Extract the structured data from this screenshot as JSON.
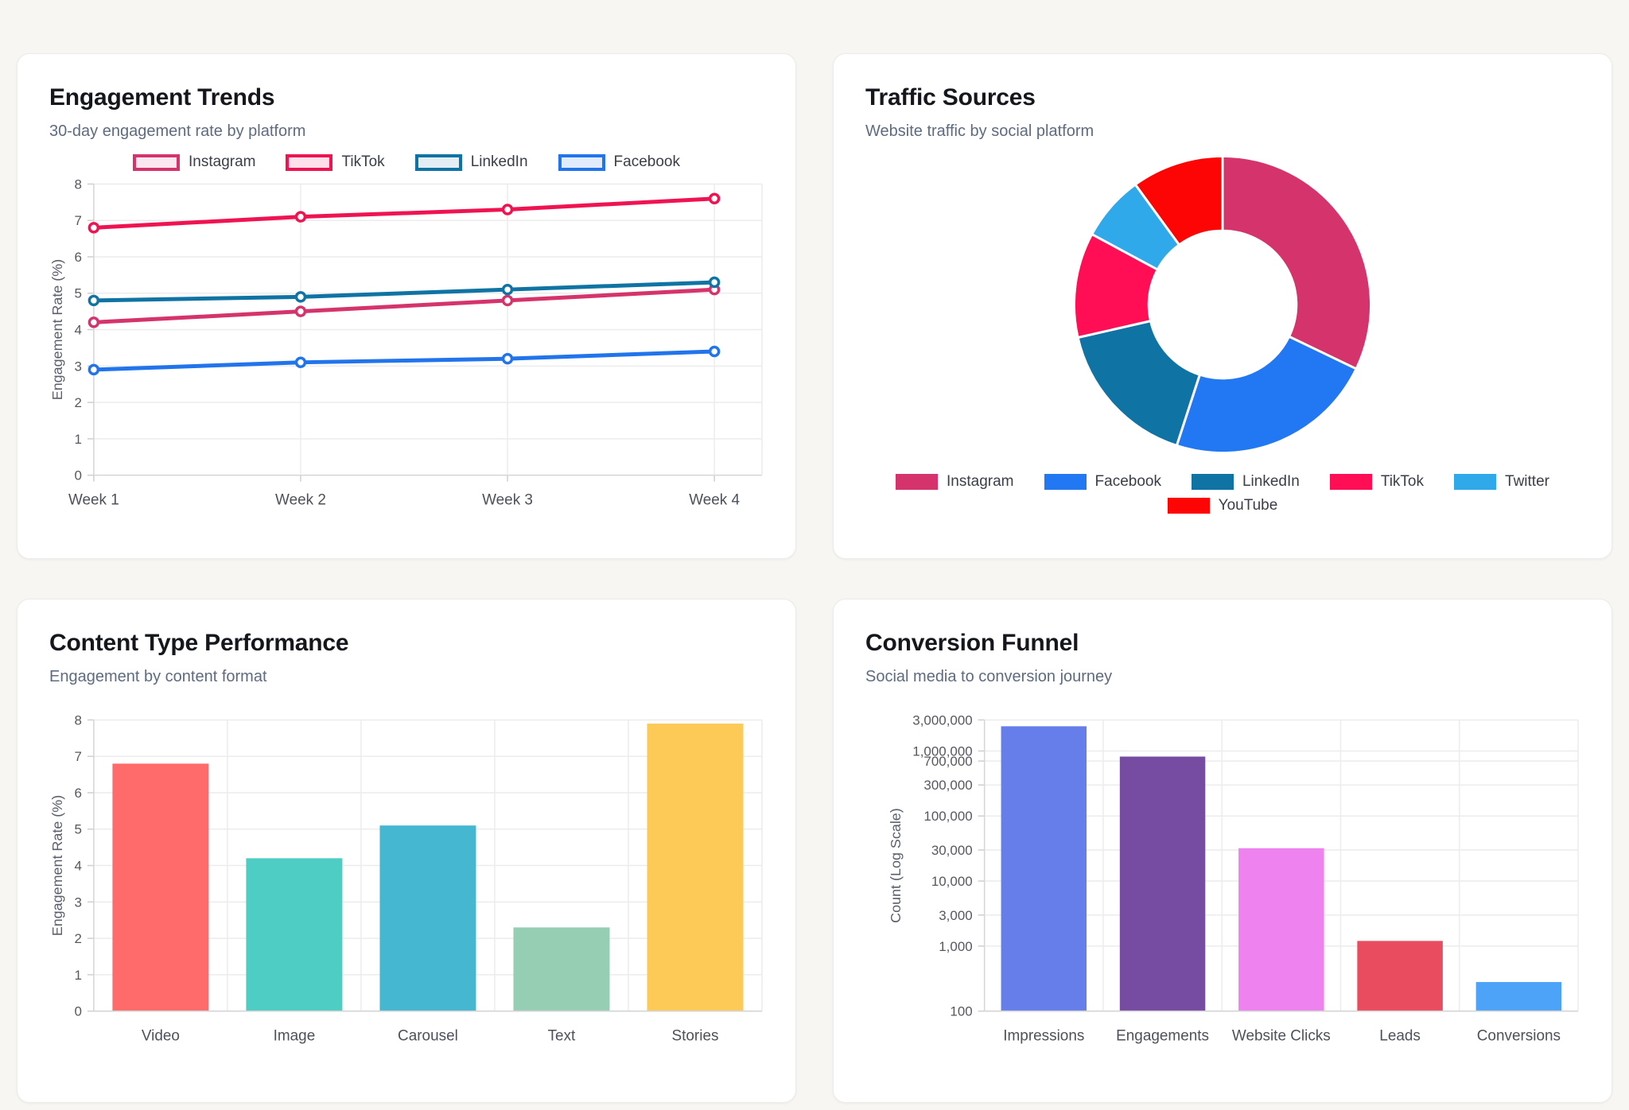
{
  "page": {
    "background": "#f8f6f3"
  },
  "cards": [
    {
      "title": "Engagement Trends",
      "subtitle": "30-day engagement rate by platform"
    },
    {
      "title": "Traffic Sources",
      "subtitle": "Website traffic by social platform"
    },
    {
      "title": "Content Type Performance",
      "subtitle": "Engagement by content format"
    },
    {
      "title": "Conversion Funnel",
      "subtitle": "Social media to conversion journey"
    }
  ],
  "chart_data": [
    {
      "type": "line",
      "title": "Engagement Trends",
      "categories": [
        "Week 1",
        "Week 2",
        "Week 3",
        "Week 4"
      ],
      "series": [
        {
          "name": "Instagram",
          "values": [
            4.2,
            4.5,
            4.8,
            5.1
          ],
          "color": "#d5336b",
          "legend_fill": "#fbe7ef"
        },
        {
          "name": "TikTok",
          "values": [
            6.8,
            7.1,
            7.3,
            7.6
          ],
          "color": "#f01352",
          "legend_fill": "#fee0ea"
        },
        {
          "name": "LinkedIn",
          "values": [
            4.8,
            4.9,
            5.1,
            5.3
          ],
          "color": "#0f74a3",
          "legend_fill": "#e2edf4"
        },
        {
          "name": "Facebook",
          "values": [
            2.9,
            3.1,
            3.2,
            3.4
          ],
          "color": "#2174ec",
          "legend_fill": "#e0ebfc"
        }
      ],
      "xlabel": "",
      "ylabel": "Engagement Rate (%)",
      "ylim": [
        0,
        8
      ],
      "ytick_step": 1,
      "legend_position": "top",
      "grid": true
    },
    {
      "type": "pie",
      "title": "Traffic Sources",
      "donut": true,
      "labels": [
        "Instagram",
        "Facebook",
        "LinkedIn",
        "TikTok",
        "Twitter",
        "YouTube"
      ],
      "values": [
        45000,
        32000,
        23000,
        16000,
        10000,
        14000
      ],
      "percents": [
        32.1,
        22.9,
        16.4,
        11.4,
        7.1,
        10.0
      ],
      "colors": [
        "#d5336b",
        "#2277f2",
        "#0f74a3",
        "#ff0d55",
        "#2fa9ea",
        "#fd0505"
      ],
      "legend_position": "bottom",
      "legend_wrap": 5
    },
    {
      "type": "bar",
      "title": "Content Type Performance",
      "categories": [
        "Video",
        "Image",
        "Carousel",
        "Text",
        "Stories"
      ],
      "values": [
        6.8,
        4.2,
        5.1,
        2.3,
        7.9
      ],
      "colors": [
        "#ff6b6b",
        "#4ecdc4",
        "#45b7d1",
        "#96ceb4",
        "#feca57"
      ],
      "xlabel": "",
      "ylabel": "Engagement Rate (%)",
      "ylim": [
        0,
        8
      ],
      "ytick_step": 1,
      "grid": true
    },
    {
      "type": "bar",
      "title": "Conversion Funnel",
      "categories": [
        "Impressions",
        "Engagements",
        "Website Clicks",
        "Leads",
        "Conversions"
      ],
      "values": [
        2400000,
        820000,
        32000,
        1200,
        280
      ],
      "colors": [
        "#667eea",
        "#764ba2",
        "#ee82ee",
        "#ea4c5f",
        "#4da3f7"
      ],
      "xlabel": "",
      "ylabel": "Count (Log Scale)",
      "yscale": "log",
      "ylim": [
        100,
        3000000
      ],
      "yticks": [
        3000000,
        1000000,
        700000,
        300000,
        100000,
        30000,
        10000,
        3000,
        1000,
        100
      ],
      "ytick_labels": [
        "3,000,000",
        "1,000,000",
        "700,000",
        "300,000",
        "100,000",
        "30,000",
        "10,000",
        "3,000",
        "1,000",
        "100"
      ],
      "grid": true
    }
  ]
}
